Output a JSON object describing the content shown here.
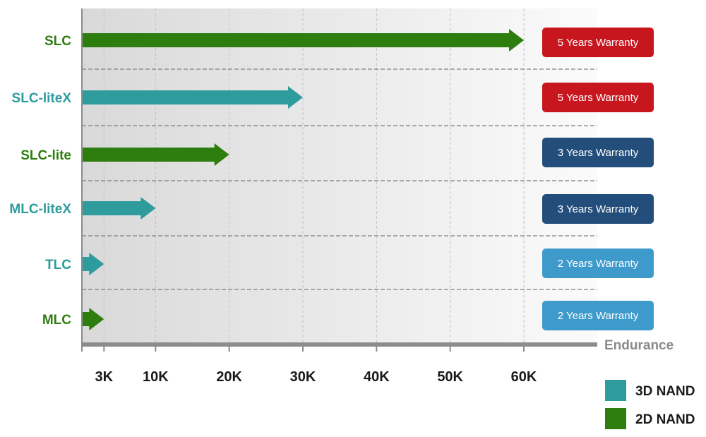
{
  "chart_data": {
    "type": "bar",
    "orientation": "horizontal",
    "categories": [
      "SLC",
      "SLC-liteX",
      "SLC-lite",
      "MLC-liteX",
      "TLC",
      "MLC"
    ],
    "values": [
      60000,
      30000,
      20000,
      10000,
      3000,
      3000
    ],
    "nand_type": [
      "2D NAND",
      "3D NAND",
      "2D NAND",
      "3D NAND",
      "3D NAND",
      "2D NAND"
    ],
    "warranty": [
      "5 Years Warranty",
      "5 Years Warranty",
      "3 Years Warranty",
      "3 Years Warranty",
      "2 Years Warranty",
      "2 Years Warranty"
    ],
    "xlabel": "Endurance",
    "ylabel": "",
    "xlim": [
      0,
      70000
    ],
    "xticks": [
      3000,
      10000,
      20000,
      30000,
      40000,
      50000,
      60000
    ],
    "xtick_labels": [
      "3K",
      "10K",
      "20K",
      "30K",
      "40K",
      "50K",
      "60K"
    ],
    "legend": {
      "position": "bottom-right",
      "entries": [
        {
          "name": "3D NAND",
          "color": "#2e9b9c"
        },
        {
          "name": "2D NAND",
          "color": "#2e7d0f"
        }
      ]
    },
    "colors": {
      "3D NAND": "#2e9b9c",
      "2D NAND": "#2e7d0f",
      "5 Years Warranty": "#c8161e",
      "3 Years Warranty": "#234d7a",
      "2 Years Warranty": "#3d9acb",
      "axis": "#8c8c8c"
    }
  }
}
